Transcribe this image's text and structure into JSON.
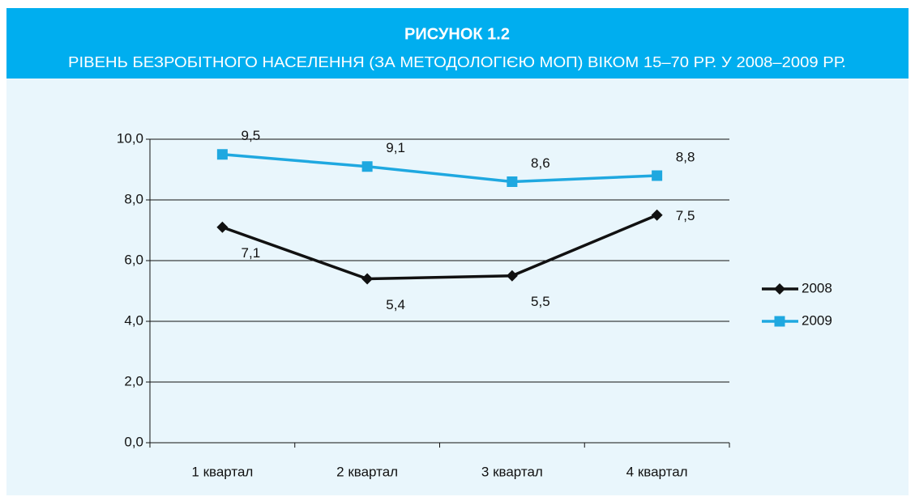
{
  "chart_data": {
    "type": "line",
    "title": "РИСУНОК 1.2",
    "subtitle": "РІВЕНЬ БЕЗРОБІТНОГО НАСЕЛЕННЯ (ЗА МЕТОДОЛОГІЄЮ МОП) ВІКОМ 15–70 РР. У 2008–2009 РР.",
    "categories": [
      "1 квартал",
      "2 квартал",
      "3 квартал",
      "4 квартал"
    ],
    "series": [
      {
        "name": "2008",
        "color": "#111111",
        "marker": "diamond",
        "values": [
          7.1,
          5.4,
          5.5,
          7.5
        ],
        "value_labels": [
          "7,1",
          "5,4",
          "5,5",
          "7,5"
        ]
      },
      {
        "name": "2009",
        "color": "#1fa8e0",
        "marker": "square",
        "values": [
          9.5,
          9.1,
          8.6,
          8.8
        ],
        "value_labels": [
          "9,5",
          "9,1",
          "8,6",
          "8,8"
        ]
      }
    ],
    "ylim": [
      0,
      10
    ],
    "yticks": [
      {
        "value": 0,
        "label": "0,0"
      },
      {
        "value": 2,
        "label": "2,0"
      },
      {
        "value": 4,
        "label": "4,0"
      },
      {
        "value": 6,
        "label": "6,0"
      },
      {
        "value": 8,
        "label": "8,0"
      },
      {
        "value": 10,
        "label": "10,0"
      }
    ],
    "grid": true,
    "legend": "right"
  }
}
